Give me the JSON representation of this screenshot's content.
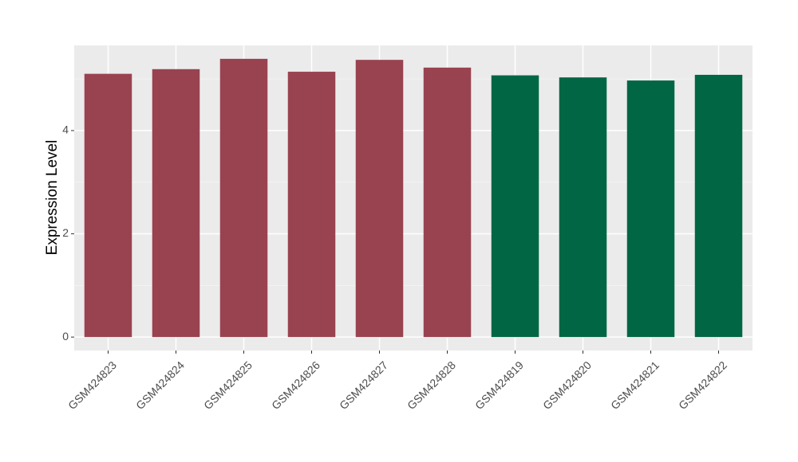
{
  "chart_data": {
    "type": "bar",
    "y_label": "Expression Level",
    "categories": [
      "GSM424823",
      "GSM424824",
      "GSM424825",
      "GSM424826",
      "GSM424827",
      "GSM424828",
      "GSM424819",
      "GSM424820",
      "GSM424821",
      "GSM424822"
    ],
    "values": [
      5.1,
      5.19,
      5.39,
      5.14,
      5.37,
      5.22,
      5.07,
      5.03,
      4.97,
      5.08
    ],
    "colors": [
      "#994350",
      "#994350",
      "#994350",
      "#994350",
      "#994350",
      "#994350",
      "#006644",
      "#006644",
      "#006644",
      "#006644"
    ],
    "ylim": [
      -0.26,
      5.65
    ],
    "yticks": [
      0,
      2,
      4
    ],
    "minor_yticks": [
      1,
      3,
      5
    ],
    "grid": true
  }
}
